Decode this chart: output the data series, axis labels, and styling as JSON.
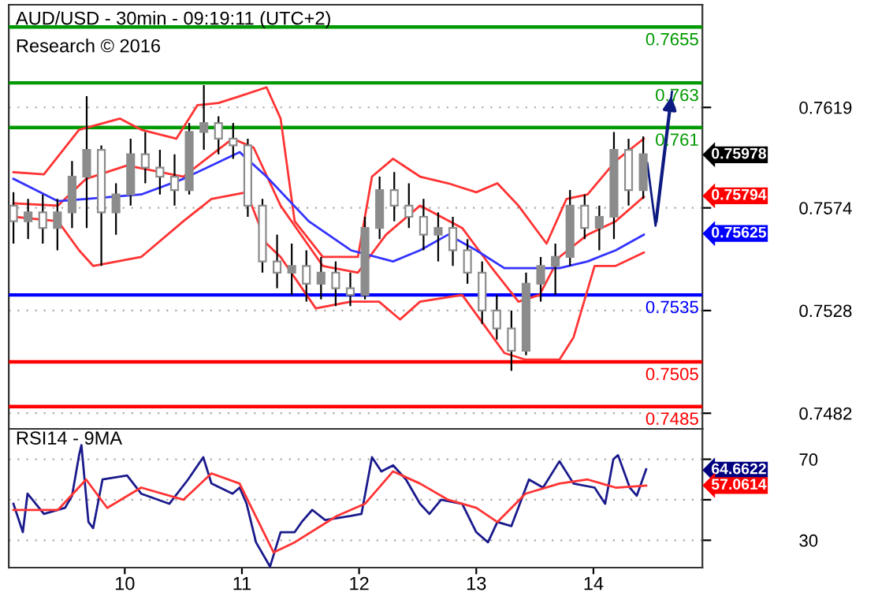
{
  "chart_data": [
    {
      "type": "candlestick",
      "title": "AUD/USD - 30min - 09:19:11 (UTC+2)",
      "subtitle": "Research © 2016",
      "color": "#8c8c8c",
      "x": [
        9.05,
        9.175,
        9.3,
        9.425,
        9.55,
        9.675,
        9.8,
        9.925,
        10.05,
        10.175,
        10.3,
        10.425,
        10.55,
        10.675,
        10.8,
        10.925,
        11.05,
        11.175,
        11.3,
        11.425,
        11.55,
        11.675,
        11.8,
        11.925,
        12.05,
        12.175,
        12.3,
        12.425,
        12.55,
        12.675,
        12.8,
        12.925,
        13.05,
        13.175,
        13.3,
        13.425,
        13.55,
        13.675,
        13.8,
        13.925,
        14.05,
        14.175,
        14.3,
        14.425
      ],
      "ohlc": [
        [
          0.7575,
          0.7581,
          0.7558,
          0.7568
        ],
        [
          0.7568,
          0.7578,
          0.756,
          0.7572
        ],
        [
          0.7572,
          0.758,
          0.7558,
          0.7565
        ],
        [
          0.7565,
          0.7578,
          0.7555,
          0.7572
        ],
        [
          0.7572,
          0.7595,
          0.7565,
          0.7588
        ],
        [
          0.7588,
          0.7624,
          0.7565,
          0.76
        ],
        [
          0.76,
          0.7602,
          0.7548,
          0.7572
        ],
        [
          0.7572,
          0.7585,
          0.7562,
          0.758
        ],
        [
          0.758,
          0.7605,
          0.7575,
          0.7598
        ],
        [
          0.7598,
          0.7608,
          0.7585,
          0.7592
        ],
        [
          0.7592,
          0.76,
          0.758,
          0.7588
        ],
        [
          0.7588,
          0.7598,
          0.7575,
          0.7582
        ],
        [
          0.7582,
          0.7612,
          0.758,
          0.7608
        ],
        [
          0.7608,
          0.7629,
          0.76,
          0.7612
        ],
        [
          0.7612,
          0.7615,
          0.7598,
          0.7605
        ],
        [
          0.7605,
          0.7612,
          0.7596,
          0.7602
        ],
        [
          0.7602,
          0.7605,
          0.757,
          0.7575
        ],
        [
          0.7575,
          0.7578,
          0.7545,
          0.755
        ],
        [
          0.755,
          0.7562,
          0.7538,
          0.7545
        ],
        [
          0.7545,
          0.7558,
          0.7535,
          0.7548
        ],
        [
          0.7548,
          0.7555,
          0.7532,
          0.754
        ],
        [
          0.754,
          0.7552,
          0.7533,
          0.7545
        ],
        [
          0.7545,
          0.755,
          0.753,
          0.7538
        ],
        [
          0.7538,
          0.7545,
          0.753,
          0.7535
        ],
        [
          0.7535,
          0.757,
          0.7533,
          0.7565
        ],
        [
          0.7565,
          0.7588,
          0.756,
          0.7582
        ],
        [
          0.7582,
          0.759,
          0.7568,
          0.7575
        ],
        [
          0.7575,
          0.7585,
          0.7565,
          0.757
        ],
        [
          0.757,
          0.7578,
          0.7555,
          0.7562
        ],
        [
          0.7562,
          0.7572,
          0.755,
          0.7565
        ],
        [
          0.7565,
          0.757,
          0.7548,
          0.7555
        ],
        [
          0.7555,
          0.756,
          0.754,
          0.7545
        ],
        [
          0.7545,
          0.755,
          0.7522,
          0.7528
        ],
        [
          0.7528,
          0.7535,
          0.7515,
          0.752
        ],
        [
          0.752,
          0.7528,
          0.7501,
          0.751
        ],
        [
          0.751,
          0.7545,
          0.7508,
          0.754
        ],
        [
          0.754,
          0.7552,
          0.7532,
          0.7548
        ],
        [
          0.7548,
          0.7558,
          0.7535,
          0.7552
        ],
        [
          0.7552,
          0.7582,
          0.7548,
          0.7575
        ],
        [
          0.7575,
          0.758,
          0.756,
          0.7565
        ],
        [
          0.7565,
          0.7575,
          0.7555,
          0.757
        ],
        [
          0.757,
          0.7608,
          0.756,
          0.76
        ],
        [
          0.76,
          0.7605,
          0.7575,
          0.7582
        ],
        [
          0.7582,
          0.7606,
          0.7578,
          0.7598
        ]
      ],
      "series": [
        {
          "type": "line",
          "color": "#ff3333",
          "x": [
            9.05,
            9.31,
            9.61,
            9.96,
            10.14,
            10.44,
            10.62,
            10.8,
            10.98,
            11.21,
            11.33,
            11.45,
            11.69,
            11.99,
            12.11,
            12.29,
            12.52,
            12.76,
            13.0,
            13.18,
            13.36,
            13.6,
            13.77,
            13.95,
            14.19,
            14.43
          ],
          "values": [
            0.759,
            0.7589,
            0.7609,
            0.7614,
            0.7609,
            0.7605,
            0.762,
            0.7621,
            0.7624,
            0.7628,
            0.7614,
            0.7568,
            0.7552,
            0.7552,
            0.7588,
            0.7596,
            0.7588,
            0.7585,
            0.7581,
            0.7585,
            0.7575,
            0.7558,
            0.7578,
            0.758,
            0.7595,
            0.7605
          ]
        },
        {
          "type": "line",
          "color": "#ff3333",
          "x": [
            9.05,
            9.43,
            9.67,
            10.02,
            10.5,
            10.92,
            11.1,
            11.33,
            11.69,
            11.99,
            12.23,
            12.52,
            12.88,
            13.12,
            13.36,
            13.54,
            13.71,
            13.95,
            14.19,
            14.43
          ],
          "values": [
            0.7576,
            0.7575,
            0.7587,
            0.7593,
            0.7588,
            0.7605,
            0.7601,
            0.7575,
            0.7548,
            0.7545,
            0.7562,
            0.7575,
            0.7565,
            0.7548,
            0.7532,
            0.7535,
            0.7552,
            0.7562,
            0.7568,
            0.7579
          ]
        },
        {
          "type": "line",
          "color": "#ff3333",
          "x": [
            9.05,
            9.43,
            9.61,
            9.73,
            10.14,
            10.5,
            10.74,
            11.04,
            11.21,
            11.33,
            11.63,
            11.93,
            12.17,
            12.35,
            12.52,
            12.88,
            13.06,
            13.24,
            13.42,
            13.71,
            13.83,
            14.01,
            14.19,
            14.43
          ],
          "values": [
            0.757,
            0.7568,
            0.7555,
            0.7548,
            0.7552,
            0.7568,
            0.7578,
            0.7581,
            0.7558,
            0.7552,
            0.7529,
            0.7532,
            0.7532,
            0.7524,
            0.7532,
            0.7535,
            0.7522,
            0.7509,
            0.7506,
            0.7506,
            0.7516,
            0.7548,
            0.7548,
            0.7554
          ]
        },
        {
          "type": "line",
          "color": "#3333ff",
          "x": [
            9.05,
            9.43,
            9.67,
            10.14,
            10.5,
            10.98,
            11.21,
            11.57,
            11.93,
            12.29,
            12.52,
            12.76,
            13.0,
            13.24,
            13.71,
            13.95,
            14.19,
            14.43
          ],
          "values": [
            0.7587,
            0.7577,
            0.7578,
            0.758,
            0.7587,
            0.7599,
            0.7588,
            0.7568,
            0.7555,
            0.755,
            0.7555,
            0.7562,
            0.7555,
            0.7547,
            0.7547,
            0.755,
            0.7555,
            0.7562
          ]
        },
        {
          "type": "line",
          "color": "#0d1a80",
          "x": [
            14.46,
            14.53,
            14.67
          ],
          "values": [
            0.7594,
            0.7566,
            0.7626
          ]
        }
      ],
      "ref_lines": [
        {
          "axis": "y",
          "value": 0.7655,
          "label": "0.7655",
          "color": "#009900"
        },
        {
          "axis": "y",
          "value": 0.763,
          "label": "0.763",
          "color": "#009900"
        },
        {
          "axis": "y",
          "value": 0.761,
          "label": "0.761",
          "color": "#009900"
        },
        {
          "axis": "y",
          "value": 0.7535,
          "label": "0.7535",
          "color": "#0000ff"
        },
        {
          "axis": "y",
          "value": 0.7505,
          "label": "0.7505",
          "color": "#ff0000"
        },
        {
          "axis": "y",
          "value": 0.7485,
          "label": "0.7485",
          "color": "#ff0000"
        }
      ],
      "annotations": [
        "0.75978",
        "0.75794",
        "0.75625"
      ],
      "xlim": [
        9.01,
        14.93
      ],
      "ylim": [
        0.7475,
        0.7665
      ],
      "yticks": [
        0.7482,
        0.7528,
        0.7574,
        0.7619
      ],
      "xticks": [
        10,
        11,
        12,
        13,
        14
      ],
      "tick_labels": "y",
      "grid": "y",
      "legend": false
    },
    {
      "type": "line",
      "title": "RSI14 - 9MA",
      "series": [
        {
          "color": "#1a1a8c",
          "x": [
            9.05,
            9.13,
            9.17,
            9.31,
            9.49,
            9.55,
            9.61,
            9.63,
            9.69,
            9.73,
            9.81,
            10.02,
            10.14,
            10.38,
            10.54,
            10.67,
            10.74,
            10.92,
            10.98,
            11.04,
            11.12,
            11.24,
            11.33,
            11.45,
            11.51,
            11.6,
            11.71,
            11.93,
            12.02,
            12.11,
            12.19,
            12.29,
            12.4,
            12.52,
            12.6,
            12.7,
            12.88,
            13.0,
            13.1,
            13.18,
            13.3,
            13.45,
            13.57,
            13.71,
            13.83,
            14.01,
            14.1,
            14.17,
            14.21,
            14.31,
            14.37,
            14.45
          ],
          "values": [
            48,
            34,
            53,
            43,
            46,
            52,
            72,
            77,
            39,
            36,
            60,
            62,
            53,
            48,
            60,
            71,
            58,
            53,
            56,
            48,
            29,
            17,
            34,
            34,
            39,
            45,
            40,
            42,
            43,
            71,
            64,
            67,
            60,
            48,
            43,
            50,
            48,
            34,
            29,
            39,
            37,
            60,
            56,
            69,
            58,
            56,
            48,
            70,
            72,
            56,
            52,
            65
          ]
        },
        {
          "color": "#ff3333",
          "x": [
            9.05,
            9.43,
            9.67,
            9.85,
            10.14,
            10.5,
            10.74,
            10.98,
            11.27,
            11.45,
            11.81,
            12.05,
            12.29,
            12.52,
            12.76,
            13.0,
            13.18,
            13.42,
            13.71,
            13.95,
            14.19,
            14.45
          ],
          "values": [
            45,
            45,
            60,
            46,
            56,
            50,
            63,
            58,
            24,
            29,
            42,
            48,
            64,
            58,
            50,
            46,
            39,
            53,
            58,
            60,
            56,
            57
          ]
        }
      ],
      "annotations": [
        "64.6622",
        "57.0614"
      ],
      "xlim": [
        9.01,
        14.93
      ],
      "ylim": [
        16.5,
        85
      ],
      "yticks": [
        30,
        {
          "value": 50,
          "label": null
        },
        70
      ],
      "xticks": [
        10,
        11,
        12,
        13,
        14
      ],
      "grid": "y",
      "legend": false
    }
  ]
}
